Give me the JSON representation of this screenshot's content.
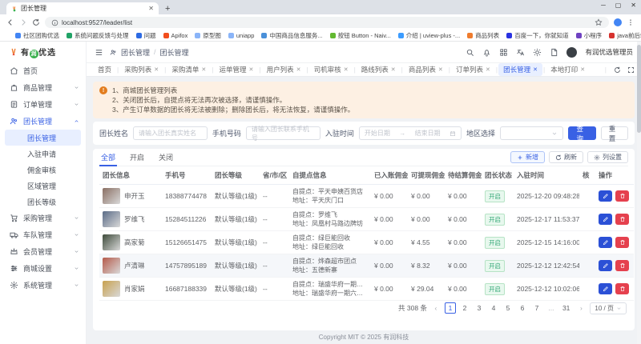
{
  "browser": {
    "tab_title": "团长管理",
    "url": "localhost:9527/leader/list",
    "window_controls": [
      "─",
      "▢",
      "✕"
    ],
    "bookmarks": [
      {
        "label": "社区团购优选",
        "color": "#4285f4"
      },
      {
        "label": "系统问题反馈与处理",
        "color": "#21a366"
      },
      {
        "label": "问题",
        "color": "#2d6ae3"
      },
      {
        "label": "Apifox",
        "color": "#f24e1e"
      },
      {
        "label": "原型图",
        "color": "#8ab4f8"
      },
      {
        "label": "uniapp",
        "color": "#8ab4f8"
      },
      {
        "label": "中国商品信息服务...",
        "color": "#4a90d9"
      },
      {
        "label": "按钮 Button - Naiv...",
        "color": "#63b931"
      },
      {
        "label": "介绍 | uview-plus -...",
        "color": "#3c9cff"
      },
      {
        "label": "商品列表",
        "color": "#ef7c2e"
      },
      {
        "label": "百度一下，你就知道",
        "color": "#2932e1"
      },
      {
        "label": "小程序",
        "color": "#6f42c1"
      },
      {
        "label": "java前后端交互 数...",
        "color": "#d6322f"
      }
    ]
  },
  "app": {
    "logo": {
      "before": "有",
      "badge": "润",
      "after": "优选"
    },
    "breadcrumb": {
      "parent": "团长管理",
      "sep": "/",
      "current": "团长管理"
    },
    "admin_name": "有润优选管理员",
    "header_icons": [
      "search-icon",
      "bell-icon",
      "grid-icon",
      "translate-icon",
      "sun-icon",
      "file-icon"
    ],
    "nav_tabs": [
      {
        "label": "首页",
        "closable": false,
        "active": false
      },
      {
        "label": "采购列表",
        "closable": true,
        "active": false
      },
      {
        "label": "采购清单",
        "closable": true,
        "active": false
      },
      {
        "label": "运单管理",
        "closable": true,
        "active": false
      },
      {
        "label": "用户列表",
        "closable": true,
        "active": false
      },
      {
        "label": "司机审核",
        "closable": true,
        "active": false
      },
      {
        "label": "路线列表",
        "closable": true,
        "active": false
      },
      {
        "label": "商品列表",
        "closable": true,
        "active": false
      },
      {
        "label": "订单列表",
        "closable": true,
        "active": false
      },
      {
        "label": "团长管理",
        "closable": true,
        "active": true
      },
      {
        "label": "本地打印",
        "closable": true,
        "active": false
      }
    ]
  },
  "sidebar": {
    "items": [
      {
        "label": "首页",
        "icon": "home-icon",
        "expandable": false
      },
      {
        "label": "商品管理",
        "icon": "goods-icon",
        "expandable": true
      },
      {
        "label": "订单管理",
        "icon": "orders-icon",
        "expandable": true
      },
      {
        "label": "团长管理",
        "icon": "leaders-icon",
        "expandable": true,
        "expanded": true,
        "children": [
          {
            "label": "团长管理",
            "active": true
          },
          {
            "label": "入驻申请",
            "active": false
          },
          {
            "label": "佣金审核",
            "active": false
          },
          {
            "label": "区域管理",
            "active": false
          },
          {
            "label": "团长等级",
            "active": false
          }
        ]
      },
      {
        "label": "采购管理",
        "icon": "purchase-icon",
        "expandable": true
      },
      {
        "label": "车队管理",
        "icon": "fleet-icon",
        "expandable": true
      },
      {
        "label": "会员管理",
        "icon": "members-icon",
        "expandable": true
      },
      {
        "label": "商城设置",
        "icon": "mall-settings-icon",
        "expandable": true
      },
      {
        "label": "系统管理",
        "icon": "system-icon",
        "expandable": true
      }
    ]
  },
  "alert": {
    "lines": [
      "1、商城团长管理列表",
      "2、关闭团长后，自提点将无法再次被选择，请谨慎操作。",
      "3、产生订单数据的团长将无法被删除；删除团长后，将无法恢复，请谨慎操作。"
    ]
  },
  "filters": {
    "name_label": "团长姓名",
    "name_placeholder": "请输入团长真实姓名",
    "phone_label": "手机号码",
    "phone_placeholder": "请输入团长联系手机号",
    "date_label": "入驻时间",
    "date_start": "开始日期",
    "date_arrow": "→",
    "date_end": "结束日期",
    "region_label": "地区选择",
    "region_value": "",
    "search_label": "查询",
    "reset_label": "重置"
  },
  "list_toolbar": {
    "tabs": [
      {
        "label": "全部",
        "active": true
      },
      {
        "label": "开启",
        "active": false
      },
      {
        "label": "关闭",
        "active": false
      }
    ],
    "add_label": "新增",
    "refresh_label": "刷新",
    "columns_label": "列设置"
  },
  "table": {
    "headers": [
      "团长信息",
      "手机号",
      "团长等级",
      "省/市/区",
      "自提点信息",
      "已入账佣金",
      "可提现佣金",
      "待结算佣金",
      "团长状态",
      "入驻时间",
      "核",
      "操作"
    ],
    "rows": [
      {
        "name": "申开玉",
        "photo_color": "#8a6f63",
        "phone": "18388774478",
        "level": "默认等级(1级)",
        "region": "--",
        "pickup": "自提点：平天申姨百货店",
        "address": "地址：平天庆门口",
        "earned": "¥ 0.00",
        "withdrawable": "¥ 0.00",
        "pending": "¥ 0.00",
        "status": "开启",
        "time": "2025-12-20 09:48:28",
        "hover": false
      },
      {
        "name": "罗维飞",
        "photo_color": "#5a6b86",
        "phone": "15284511226",
        "level": "默认等级(1级)",
        "region": "--",
        "pickup": "自提点：罗维飞",
        "address": "地址：凤凰村马路边牌坊",
        "earned": "¥ 0.00",
        "withdrawable": "¥ 0.00",
        "pending": "¥ 0.00",
        "status": "开启",
        "time": "2025-12-17 11:53:37",
        "hover": false
      },
      {
        "name": "高家菊",
        "photo_color": "#3d4a3a",
        "phone": "15126651475",
        "level": "默认等级(1级)",
        "region": "--",
        "pickup": "自提点：绿巨能回收",
        "address": "地址：绿巨能回收",
        "earned": "¥ 0.00",
        "withdrawable": "¥ 4.55",
        "pending": "¥ 0.00",
        "status": "开启",
        "time": "2025-12-15 14:16:00",
        "hover": false
      },
      {
        "name": "卢清琳",
        "photo_color": "#b55a4a",
        "phone": "14757895189",
        "level": "默认等级(1级)",
        "region": "--",
        "pickup": "自提点：烨森超市团点",
        "address": "地址：五德新寨",
        "earned": "¥ 0.00",
        "withdrawable": "¥ 8.32",
        "pending": "¥ 0.00",
        "status": "开启",
        "time": "2025-12-12 12:42:54",
        "hover": true
      },
      {
        "name": "肖家娟",
        "photo_color": "#c8a14e",
        "phone": "16687188339",
        "level": "默认等级(1级)",
        "region": "--",
        "pickup": "自提点：瑞盛华府一期六栋...",
        "address": "地址：瑞盛华府一期六栋一...",
        "earned": "¥ 0.00",
        "withdrawable": "¥ 29.04",
        "pending": "¥ 0.00",
        "status": "开启",
        "time": "2025-12-12 10:02:06",
        "hover": false
      }
    ]
  },
  "pagination": {
    "total": "共 308 条",
    "pages": [
      "1",
      "2",
      "3",
      "4",
      "5",
      "6",
      "7",
      "...",
      "31"
    ],
    "active_page": "1",
    "page_size": "10 / 页"
  },
  "footer_text": "Copyright MIT © 2025 有润科技",
  "colors": {
    "primary": "#3961e4",
    "danger": "#e5414e",
    "success": "#2ba471",
    "warning": "#e37d1e"
  }
}
